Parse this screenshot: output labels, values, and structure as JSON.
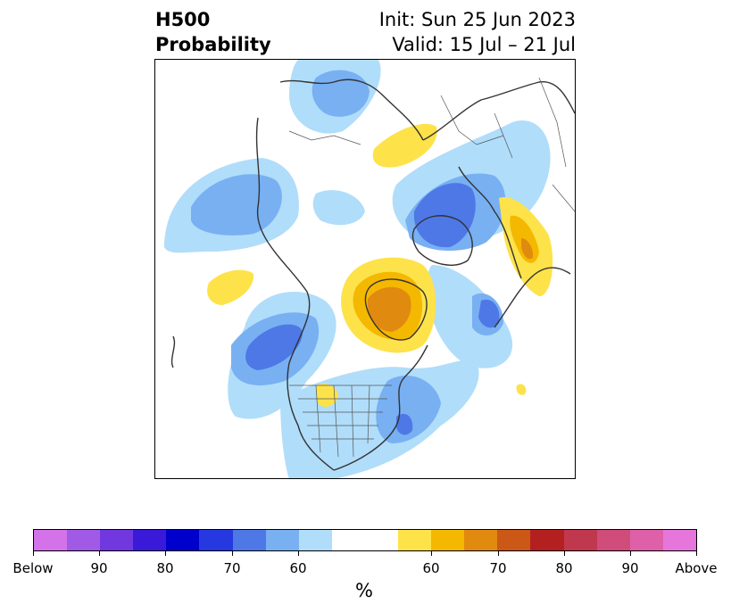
{
  "title": {
    "left_line1": "H500",
    "left_line2": "Probability",
    "right_line1": "Init: Sun 25 Jun 2023",
    "right_line2": "Valid: 15 Jul – 21 Jul"
  },
  "colorbar": {
    "label": "%",
    "ticks": [
      "Below",
      "90",
      "80",
      "70",
      "60",
      "60",
      "70",
      "80",
      "90",
      "Above"
    ],
    "colors_below": [
      "#d472ea",
      "#a05ae6",
      "#7038de",
      "#3a1ad8",
      "#0000cc",
      "#2638e0",
      "#4e78e6",
      "#78b0f2",
      "#b0ddfa"
    ],
    "neutral_color": "#ffffff",
    "colors_above": [
      "#fde24a",
      "#f4b800",
      "#e08a10",
      "#cc5818",
      "#b42020",
      "#c0384e",
      "#d04c7a",
      "#de60a8",
      "#e676dc"
    ]
  },
  "map": {
    "projection": "north-polar-stereographic",
    "colors": {
      "blue_light": "#b0ddfa",
      "blue_mid": "#78b0f2",
      "blue_dark": "#4e78e6",
      "blue_darker": "#2638e0",
      "yellow": "#fde24a",
      "gold": "#f4b800",
      "orange": "#e08a10"
    }
  }
}
